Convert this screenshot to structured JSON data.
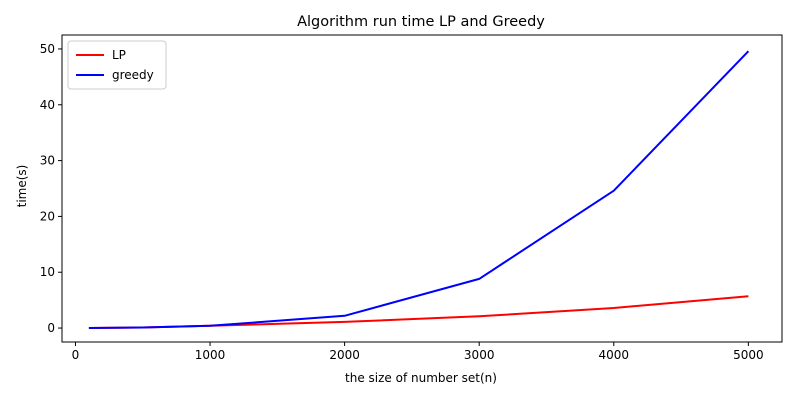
{
  "chart_data": {
    "type": "line",
    "title": "Algorithm run time LP and Greedy",
    "xlabel": "the size of number set(n)",
    "ylabel": "time(s)",
    "xlim": [
      -100,
      5250
    ],
    "ylim": [
      -2.5,
      52.5
    ],
    "xticks": [
      0,
      1000,
      2000,
      3000,
      4000,
      5000
    ],
    "yticks": [
      0,
      10,
      20,
      30,
      40,
      50
    ],
    "grid": false,
    "legend_position": "top-left",
    "series": [
      {
        "name": "LP",
        "color": "#ff0000",
        "x": [
          100,
          500,
          1000,
          2000,
          3000,
          4000,
          5000
        ],
        "y": [
          0.0,
          0.1,
          0.4,
          1.1,
          2.1,
          3.6,
          5.7
        ]
      },
      {
        "name": "greedy",
        "color": "#0000ff",
        "x": [
          100,
          500,
          1000,
          2000,
          3000,
          4000,
          5000
        ],
        "y": [
          0.0,
          0.1,
          0.4,
          2.2,
          8.8,
          24.6,
          49.6
        ]
      }
    ]
  }
}
